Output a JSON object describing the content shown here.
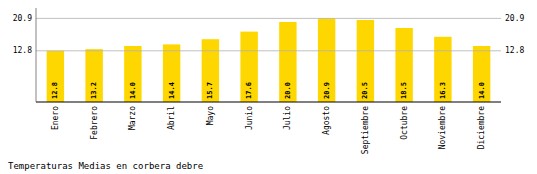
{
  "chart_data": {
    "type": "bar",
    "title": "Temperaturas Medias en corbera debre",
    "categories": [
      "Enero",
      "Febrero",
      "Marzo",
      "Abril",
      "Mayo",
      "Junio",
      "Julio",
      "Agosto",
      "Septiembre",
      "Octubre",
      "Noviembre",
      "Diciembre"
    ],
    "values": [
      12.8,
      13.2,
      14.0,
      14.4,
      15.7,
      17.6,
      20.0,
      20.9,
      20.5,
      18.5,
      16.3,
      14.0
    ],
    "value_labels": [
      "12.8",
      "13.2",
      "14.0",
      "14.4",
      "15.7",
      "17.6",
      "20.0",
      "20.9",
      "20.5",
      "18.5",
      "16.3",
      "14.0"
    ],
    "data_labels": true,
    "color": "#FFD700",
    "ylim": [
      0.0,
      23.5
    ],
    "yticks": [
      12.8,
      20.9
    ],
    "grid": true
  }
}
